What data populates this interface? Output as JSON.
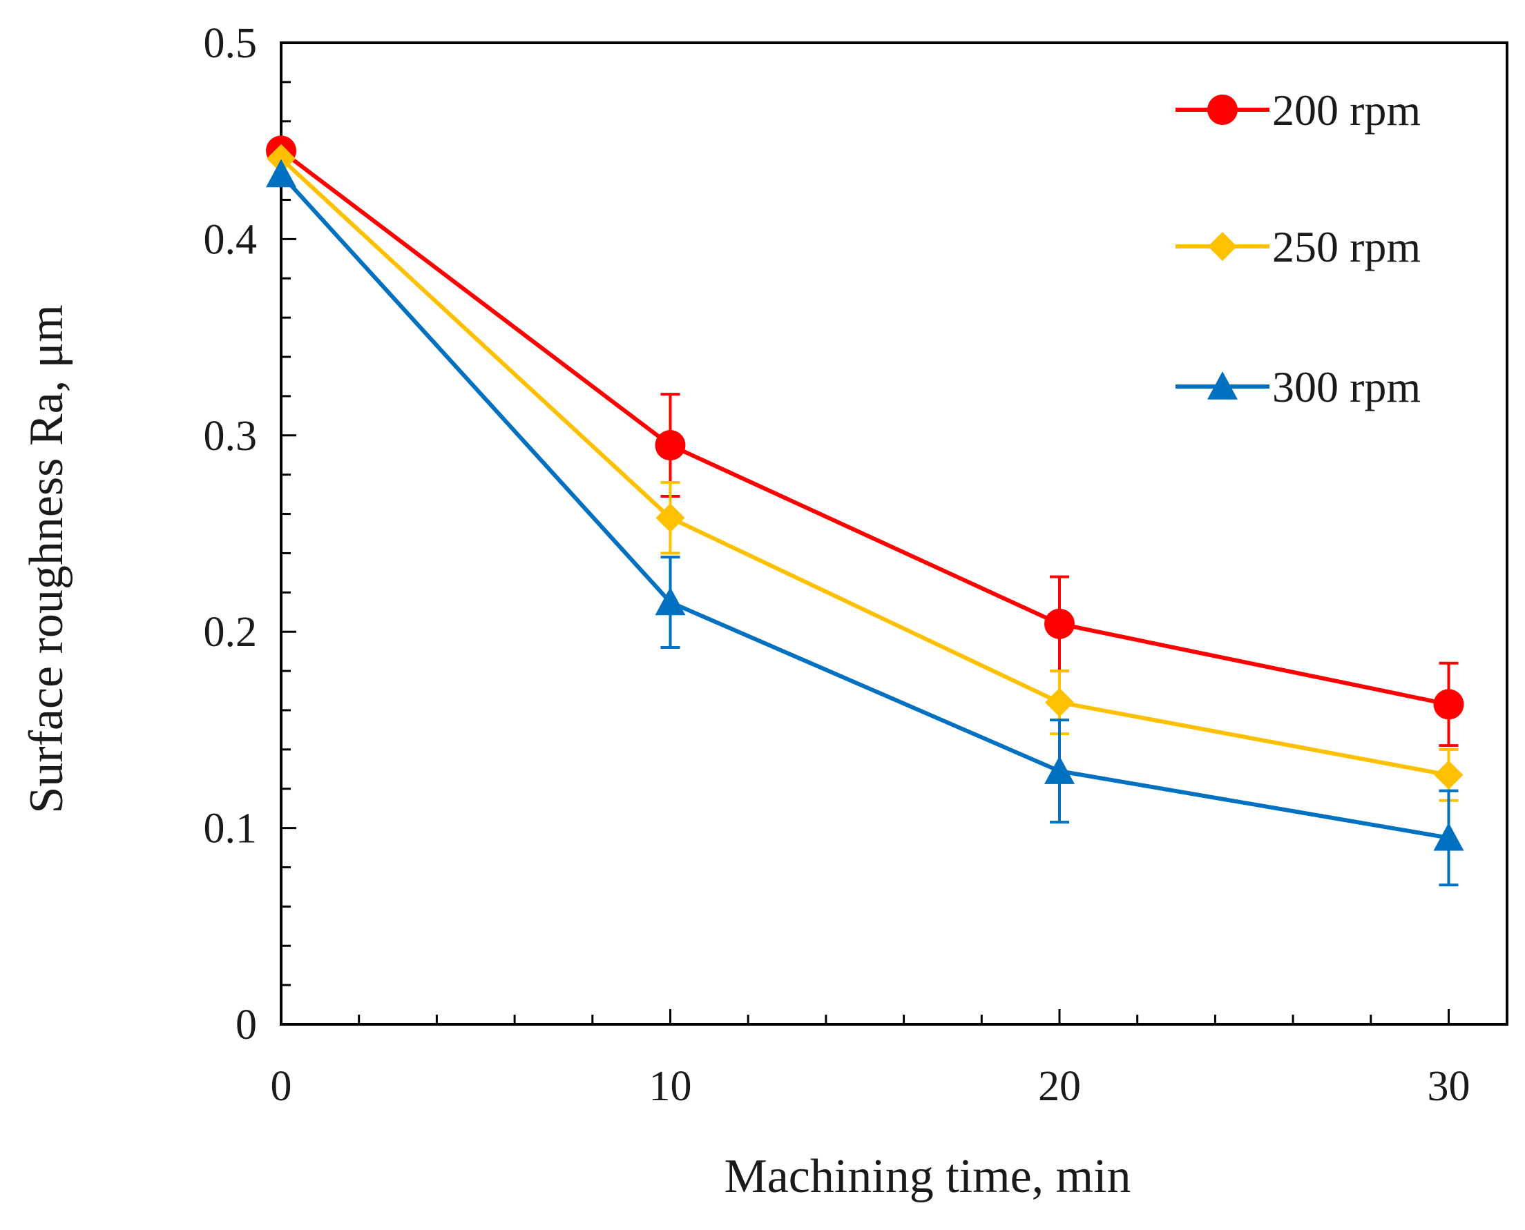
{
  "chart_data": {
    "type": "line",
    "title": "",
    "xlabel": "Machining time, min",
    "ylabel": "Surface roughness Ra,  μm",
    "xlim": [
      0,
      31.5
    ],
    "ylim": [
      0,
      0.5
    ],
    "x_ticks": [
      0,
      10,
      20,
      30
    ],
    "x_tick_labels": [
      "0",
      "10",
      "20",
      "30"
    ],
    "x_minor_step": 2,
    "y_ticks": [
      0,
      0.1,
      0.2,
      0.3,
      0.4,
      0.5
    ],
    "y_tick_labels": [
      "0",
      "0.1",
      "0.2",
      "0.3",
      "0.4",
      "0.5"
    ],
    "y_minor_step": 0.02,
    "grid": false,
    "legend_position": "top-right",
    "x": [
      0,
      10,
      20,
      30
    ],
    "series": [
      {
        "name": "200 rpm",
        "color": "#ff0000",
        "marker": "circle",
        "values": [
          0.445,
          0.295,
          0.204,
          0.163
        ],
        "error": [
          0,
          0.026,
          0.024,
          0.021
        ]
      },
      {
        "name": "250 rpm",
        "color": "#ffc000",
        "marker": "diamond",
        "values": [
          0.441,
          0.258,
          0.164,
          0.127
        ],
        "error": [
          0,
          0.018,
          0.016,
          0.013
        ]
      },
      {
        "name": "300 rpm",
        "color": "#0070c0",
        "marker": "triangle",
        "values": [
          0.433,
          0.215,
          0.129,
          0.095
        ],
        "error": [
          0,
          0.023,
          0.026,
          0.024
        ]
      }
    ]
  }
}
